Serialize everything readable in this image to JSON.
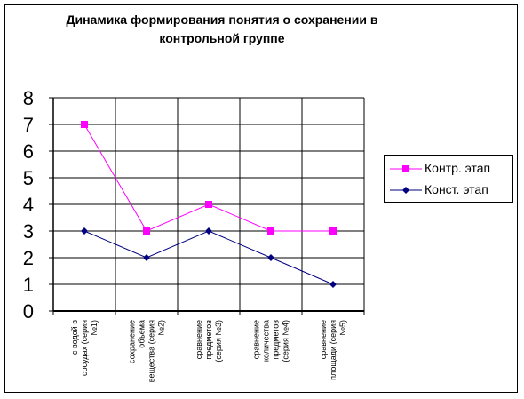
{
  "chart_data": {
    "type": "line",
    "title": "Динамика формирования понятия о сохранении в контрольной группе",
    "xlabel": "",
    "ylabel": "",
    "ylim": [
      0,
      8
    ],
    "yticks": [
      "0",
      "1",
      "2",
      "3",
      "4",
      "5",
      "6",
      "7",
      "8"
    ],
    "categories": [
      [
        "с водой в",
        "сосудах (серия",
        "№1)"
      ],
      [
        "сохранение",
        "объема",
        "вещества (серия",
        "№2)"
      ],
      [
        "сравнение",
        "предметов",
        "(серия №3)"
      ],
      [
        "сравнение",
        "количества",
        "предметов",
        "(серия №4)"
      ],
      [
        "сравнение",
        "площади (серия",
        "№5)"
      ]
    ],
    "grid": true,
    "legend_position": "right",
    "series": [
      {
        "name": "Контр. этап",
        "values": [
          7,
          3,
          4,
          3,
          3
        ],
        "color": "#ff00ff",
        "marker": "square"
      },
      {
        "name": "Конст. этап",
        "values": [
          3,
          2,
          3,
          2,
          1
        ],
        "color": "#000080",
        "marker": "diamond"
      }
    ]
  }
}
